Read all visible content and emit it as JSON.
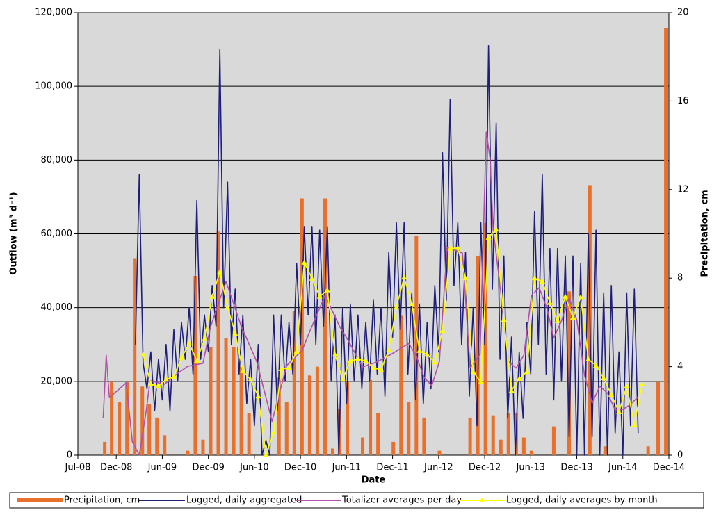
{
  "chart_data": {
    "type": "combo",
    "x_label": "Date",
    "y_label": "Outflow (m³ d⁻¹)",
    "y2_label": "Precipitation, cm",
    "xlim": [
      6,
      83
    ],
    "xticks": [
      {
        "value": 6,
        "label": "Jul-08"
      },
      {
        "value": 11,
        "label": "Dec-08"
      },
      {
        "value": 17,
        "label": "Jun-09"
      },
      {
        "value": 23,
        "label": "Dec-09"
      },
      {
        "value": 29,
        "label": "Jun-10"
      },
      {
        "value": 35,
        "label": "Dec-10"
      },
      {
        "value": 41,
        "label": "Jun-11"
      },
      {
        "value": 47,
        "label": "Dec-11"
      },
      {
        "value": 53,
        "label": "Jun-12"
      },
      {
        "value": 59,
        "label": "Dec-12"
      },
      {
        "value": 65,
        "label": "Jun-13"
      },
      {
        "value": 71,
        "label": "Dec-13"
      },
      {
        "value": 77,
        "label": "Jun-14"
      },
      {
        "value": 83,
        "label": "Dec-14"
      }
    ],
    "ylim": [
      0,
      120000
    ],
    "yticks": [
      0,
      {
        "value": 20000,
        "label": "20,000"
      },
      {
        "value": 40000,
        "label": "40,000"
      },
      {
        "value": 60000,
        "label": "60,000"
      },
      {
        "value": 80000,
        "label": "80,000"
      },
      {
        "value": 100000,
        "label": "100,000"
      },
      {
        "value": 120000,
        "label": "120,000"
      }
    ],
    "y2lim": [
      0,
      20
    ],
    "y2ticks": [
      0,
      4,
      8,
      12,
      16,
      20
    ],
    "grid": true,
    "plot_background": "#d9d9d9",
    "legend": "bottom",
    "series": [
      {
        "name": "Precipitation, cm",
        "type": "bar",
        "axis": "y2",
        "color": "#e8702a",
        "x": [
          9.5,
          10.4,
          11.4,
          12.4,
          13.4,
          14.4,
          15.3,
          16.3,
          17.3,
          20.3,
          21.3,
          22.3,
          23.3,
          24.3,
          25.3,
          26.3,
          27.3,
          28.3,
          32.2,
          33.2,
          34.2,
          35.2,
          36.2,
          37.2,
          38.2,
          39.2,
          40.1,
          41.1,
          43.1,
          44.1,
          45.1,
          47.1,
          48.1,
          49.1,
          50.1,
          51.1,
          53.1,
          57.1,
          58.1,
          59.1,
          60.1,
          61.1,
          62.1,
          63.1,
          64.1,
          65.1,
          68.0,
          70.0,
          72.7,
          74.7,
          80.3,
          81.6,
          82.6
        ],
        "values": [
          0.6,
          3.3,
          2.4,
          3.3,
          8.9,
          3.1,
          2.3,
          1.7,
          0.9,
          0.2,
          8.1,
          0.7,
          4.9,
          10.1,
          5.3,
          4.9,
          4.0,
          1.9,
          3.5,
          2.4,
          6.5,
          11.6,
          3.6,
          4.0,
          11.6,
          0.3,
          2.1,
          3.3,
          0.8,
          3.4,
          1.9,
          0.6,
          6.3,
          2.4,
          9.9,
          1.7,
          0.2,
          1.7,
          9.0,
          10.5,
          1.8,
          0.7,
          1.9,
          1.9,
          0.8,
          0.2,
          1.3,
          7.4,
          12.2,
          0.4,
          0.4,
          3.3,
          19.3
        ]
      },
      {
        "name": "Logged, daily aggregated",
        "type": "line",
        "axis": "y",
        "color": "#1f1f7a",
        "x": [
          13.5,
          14,
          14.5,
          15,
          15.5,
          16,
          16.5,
          17,
          17.5,
          18,
          18.5,
          19,
          19.5,
          20,
          20.5,
          21,
          21.5,
          22,
          22.5,
          23,
          23.5,
          24,
          24.5,
          25,
          25.5,
          26,
          26.5,
          27,
          27.5,
          28,
          28.5,
          29,
          29.5,
          30,
          30.5,
          31,
          31.5,
          32,
          32.5,
          33,
          33.5,
          34,
          34.5,
          35,
          35.5,
          36,
          36.5,
          37,
          37.5,
          38,
          38.5,
          39,
          39.5,
          40,
          40.5,
          41,
          41.5,
          42,
          42.5,
          43,
          43.5,
          44,
          44.5,
          45,
          45.5,
          46,
          46.5,
          47,
          47.5,
          48,
          48.5,
          49,
          49.5,
          50,
          50.5,
          51,
          51.5,
          52,
          52.5,
          53,
          53.5,
          54,
          54.5,
          55,
          55.5,
          56,
          56.5,
          57,
          57.5,
          58,
          58.5,
          59,
          59.5,
          60,
          60.5,
          61,
          61.5,
          62,
          62.5,
          63,
          63.5,
          64,
          64.5,
          65,
          65.5,
          66,
          66.5,
          67,
          67.5,
          68,
          68.5,
          69,
          69.5,
          70,
          70.5,
          71,
          71.5,
          72,
          72.5,
          73,
          73.5,
          74,
          74.5,
          75,
          75.5,
          76,
          76.5,
          77,
          77.5,
          78,
          78.5,
          79
        ],
        "values": [
          30000,
          76000,
          25000,
          18000,
          28000,
          12000,
          26000,
          15000,
          30000,
          12000,
          34000,
          20000,
          36000,
          26000,
          40000,
          22000,
          69000,
          26000,
          38000,
          28000,
          46000,
          35000,
          110000,
          40000,
          74000,
          30000,
          45000,
          22000,
          38000,
          14000,
          26000,
          8000,
          30000,
          0,
          4000,
          0,
          38000,
          12000,
          38000,
          20000,
          36000,
          22000,
          52000,
          30000,
          62000,
          38000,
          62000,
          30000,
          61000,
          35000,
          62000,
          20000,
          38000,
          0,
          40000,
          14000,
          41000,
          20000,
          38000,
          18000,
          36000,
          20000,
          42000,
          22000,
          40000,
          16000,
          55000,
          32000,
          63000,
          34000,
          63000,
          22000,
          44000,
          15000,
          41000,
          14000,
          36000,
          18000,
          46000,
          28000,
          82000,
          42000,
          96500,
          46000,
          63000,
          30000,
          55000,
          16000,
          40000,
          8000,
          63000,
          30000,
          111000,
          45000,
          90000,
          26000,
          54000,
          10000,
          32000,
          0,
          28000,
          10000,
          36000,
          22000,
          66000,
          30000,
          76000,
          22000,
          56000,
          15000,
          56000,
          20000,
          54000,
          5000,
          54000,
          0,
          52000,
          0,
          60000,
          5000,
          61000,
          0,
          44000,
          0,
          46000,
          6000,
          28000,
          0,
          44000,
          8000,
          45000,
          6000
        ]
      },
      {
        "name": "Totalizer averages per day",
        "type": "line",
        "axis": "y",
        "color": "#b24fa6",
        "x": [
          9.3,
          9.7,
          10.1,
          12.3,
          13.1,
          14.0,
          14.9,
          15.4,
          17.3,
          18.3,
          20.3,
          22.3,
          23.3,
          25.3,
          27.3,
          29.3,
          31.3,
          33.2,
          35.2,
          36.2,
          38.2,
          40.1,
          41.1,
          43.1,
          45.1,
          47.1,
          49.1,
          50.1,
          51.1,
          52.1,
          53.1,
          54.1,
          56.1,
          57.1,
          58.4,
          59.2,
          59.7,
          60.1,
          61.1,
          62.1,
          63.1,
          64.1,
          65.1,
          66.1,
          67.1,
          68.0,
          69.0,
          70.0,
          71.0,
          72.0,
          73.0,
          74.0,
          75.0,
          76.0,
          77.0,
          77.9,
          79.0
        ],
        "values": [
          10000,
          27100,
          15600,
          19600,
          3600,
          0,
          11900,
          20200,
          19200,
          21100,
          24100,
          24900,
          34900,
          47100,
          34900,
          25400,
          9200,
          24300,
          28300,
          33500,
          43300,
          34900,
          31500,
          23900,
          25400,
          27700,
          30300,
          26900,
          21100,
          18800,
          25400,
          56300,
          54800,
          23600,
          27300,
          87600,
          80400,
          61200,
          44300,
          25400,
          23600,
          27100,
          43300,
          45400,
          39900,
          31800,
          36400,
          42600,
          36700,
          21700,
          14100,
          18700,
          16800,
          12200,
          12400,
          13600,
          15800
        ]
      },
      {
        "name": "Logged, daily averages by month",
        "type": "line",
        "axis": "y",
        "color": "#ffff00",
        "marker": "triangle",
        "x": [
          14.5,
          15.5,
          16.5,
          17.5,
          18.5,
          19.5,
          20.5,
          21.5,
          22.5,
          23.5,
          24.5,
          25.5,
          26.5,
          27.5,
          28.5,
          29.5,
          30.5,
          31.5,
          32.5,
          33.5,
          34.5,
          35.5,
          36.5,
          37.5,
          38.5,
          39.5,
          40.5,
          41.5,
          42.5,
          43.5,
          44.5,
          45.5,
          46.5,
          47.5,
          48.5,
          49.5,
          50.5,
          51.5,
          52.5,
          53.5,
          54.5,
          55.5,
          56.5,
          57.5,
          58.5,
          59.5,
          60.5,
          61.5,
          62.5,
          63.5,
          64.5,
          65.5,
          66.5,
          67.5,
          68.5,
          69.5,
          70.5,
          71.5,
          72.5,
          73.5,
          74.5,
          75.5,
          76.5,
          77.5,
          78.5,
          79.5
        ],
        "values": [
          27300,
          19400,
          18700,
          20500,
          21300,
          26400,
          30300,
          25600,
          31500,
          43000,
          49700,
          40100,
          33000,
          22800,
          20500,
          16000,
          0,
          6200,
          23400,
          23600,
          28100,
          52200,
          47900,
          43000,
          44700,
          27300,
          20500,
          25600,
          26000,
          25600,
          23600,
          23200,
          28500,
          40100,
          48200,
          40900,
          28300,
          27300,
          25200,
          33700,
          56000,
          56200,
          48000,
          22600,
          19800,
          59000,
          61200,
          36700,
          17500,
          20700,
          22600,
          48000,
          47100,
          41300,
          36400,
          43000,
          37300,
          42800,
          26000,
          24300,
          20900,
          16400,
          11700,
          18700,
          8300,
          19200
        ]
      }
    ]
  }
}
